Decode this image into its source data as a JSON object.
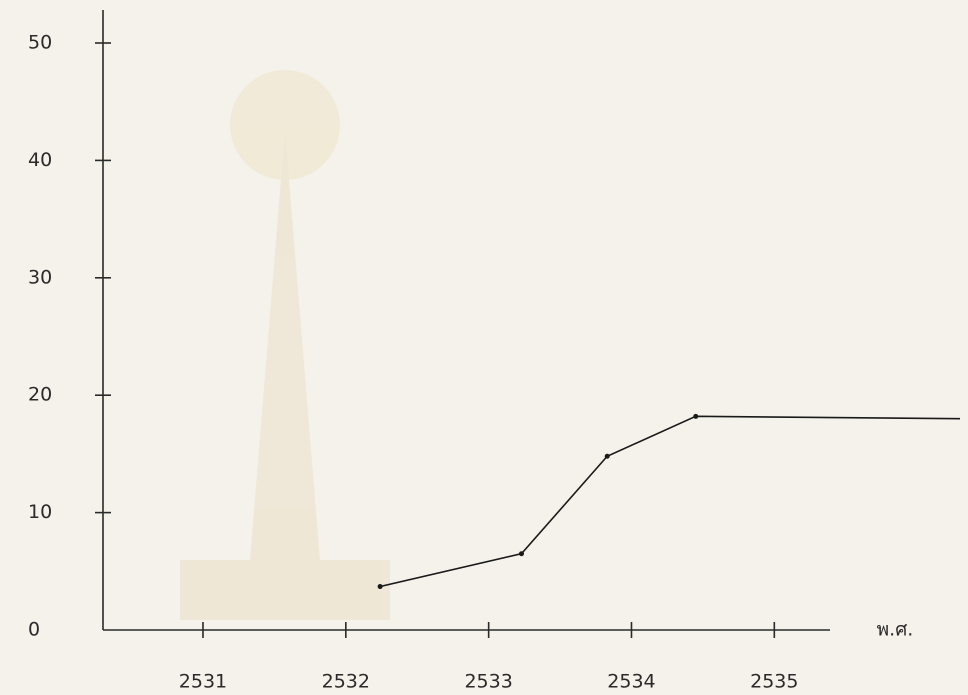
{
  "chart_data": {
    "type": "line",
    "xlabel": "พ.ศ.",
    "x": [
      2532.24,
      2533.23,
      2533.83,
      2534.45,
      2536.3
    ],
    "values": [
      3.7,
      6.5,
      14.8,
      18.2,
      18
    ],
    "color": "#1a1a1a",
    "xlim": [
      2530.3,
      2536.3
    ],
    "xticks": [
      2531,
      2532,
      2533,
      2534,
      2535
    ],
    "ylim": [
      0,
      50
    ],
    "yticks": [
      0,
      10,
      20,
      30,
      40,
      50
    ],
    "grid": false
  }
}
